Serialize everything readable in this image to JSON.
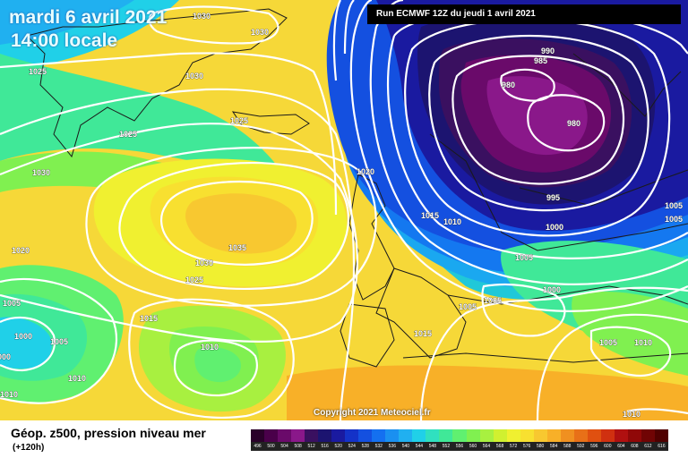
{
  "header": {
    "date": "mardi 6 avril 2021",
    "time": "14:00 locale",
    "run": "Run ECMWF 12Z du jeudi 1 avril 2021",
    "copyright": "Copyright 2021 Meteociel.fr"
  },
  "footer": {
    "title": "Géop. z500, pression niveau mer",
    "subtitle": "(+120h)"
  },
  "colorscale": {
    "labels": [
      "496",
      "500",
      "504",
      "508",
      "512",
      "516",
      "520",
      "524",
      "528",
      "532",
      "536",
      "540",
      "544",
      "548",
      "552",
      "556",
      "560",
      "564",
      "568",
      "572",
      "576",
      "580",
      "584",
      "588",
      "592",
      "596",
      "600",
      "604",
      "608",
      "612",
      "616"
    ],
    "colors": [
      "#2a002a",
      "#4a004a",
      "#6a0a6a",
      "#8a188a",
      "#3a1060",
      "#1c1470",
      "#1a1aa0",
      "#1432c8",
      "#1450e0",
      "#1470f0",
      "#1a90f0",
      "#20b0f0",
      "#20d0e8",
      "#30e0c0",
      "#40e898",
      "#60f070",
      "#80f050",
      "#a8f040",
      "#d0f030",
      "#f0f030",
      "#f8e030",
      "#f8c830",
      "#f8b028",
      "#f09020",
      "#e87018",
      "#e05010",
      "#d03010",
      "#b01010",
      "#900808",
      "#700404",
      "#500000"
    ]
  },
  "isobars": [
    {
      "label": "1030"
    },
    {
      "label": "1030"
    },
    {
      "label": "1025"
    },
    {
      "label": "1030"
    },
    {
      "label": "1025"
    },
    {
      "label": "1025"
    },
    {
      "label": "1030"
    },
    {
      "label": "1020"
    },
    {
      "label": "1020"
    },
    {
      "label": "1035"
    },
    {
      "label": "1030"
    },
    {
      "label": "1025"
    },
    {
      "label": "1015"
    },
    {
      "label": "1015"
    },
    {
      "label": "1010"
    },
    {
      "label": "1005"
    },
    {
      "label": "1000"
    },
    {
      "label": "1005"
    },
    {
      "label": "1000"
    },
    {
      "label": "1010"
    },
    {
      "label": "1010"
    },
    {
      "label": "1010"
    },
    {
      "label": "1015"
    },
    {
      "label": "1005"
    },
    {
      "label": "1005"
    },
    {
      "label": "1005"
    },
    {
      "label": "1000"
    },
    {
      "label": "1005"
    },
    {
      "label": "1010"
    },
    {
      "label": "1005"
    },
    {
      "label": "1005"
    },
    {
      "label": "1000"
    },
    {
      "label": "995"
    },
    {
      "label": "990"
    },
    {
      "label": "985"
    },
    {
      "label": "980"
    },
    {
      "label": "980"
    },
    {
      "label": "1010"
    }
  ]
}
